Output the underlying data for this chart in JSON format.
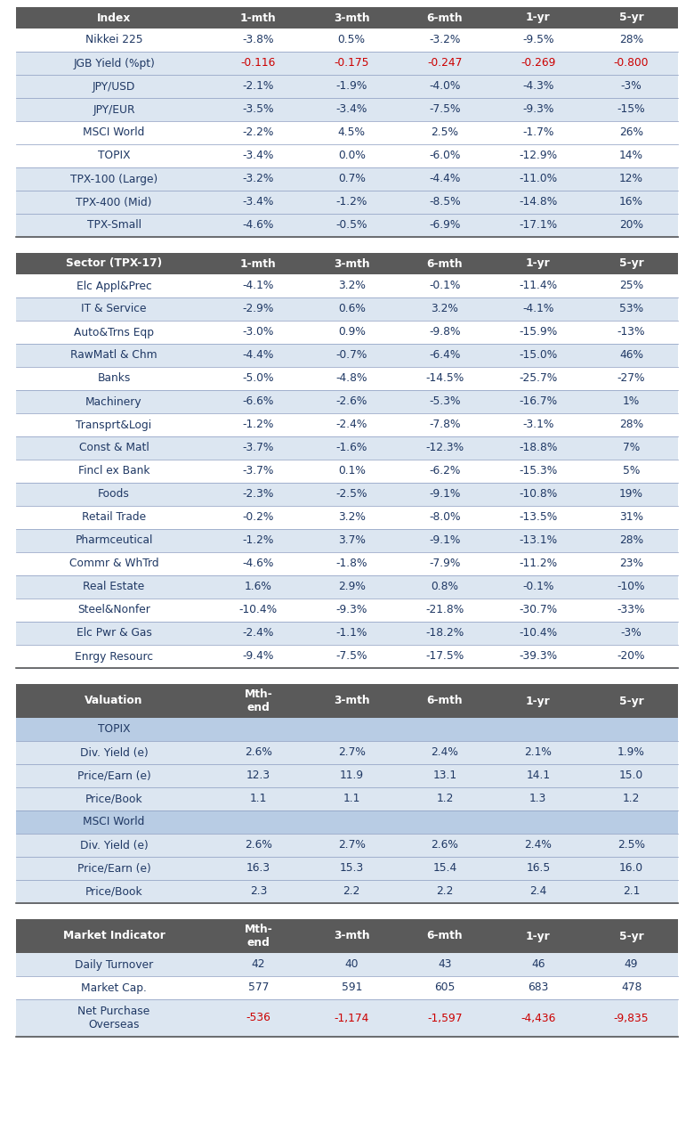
{
  "table1_header": [
    "Index",
    "1-mth",
    "3-mth",
    "6-mth",
    "1-yr",
    "5-yr"
  ],
  "table1_rows": [
    [
      "Nikkei 225",
      "-3.8%",
      "0.5%",
      "-3.2%",
      "-9.5%",
      "28%"
    ],
    [
      "JGB Yield (%pt)",
      "-0.116",
      "-0.175",
      "-0.247",
      "-0.269",
      "-0.800"
    ],
    [
      "JPY/USD",
      "-2.1%",
      "-1.9%",
      "-4.0%",
      "-4.3%",
      "-3%"
    ],
    [
      "JPY/EUR",
      "-3.5%",
      "-3.4%",
      "-7.5%",
      "-9.3%",
      "-15%"
    ],
    [
      "MSCI World",
      "-2.2%",
      "4.5%",
      "2.5%",
      "-1.7%",
      "26%"
    ],
    [
      "TOPIX",
      "-3.4%",
      "0.0%",
      "-6.0%",
      "-12.9%",
      "14%"
    ],
    [
      "TPX-100 (Large)",
      "-3.2%",
      "0.7%",
      "-4.4%",
      "-11.0%",
      "12%"
    ],
    [
      "TPX-400 (Mid)",
      "-3.4%",
      "-1.2%",
      "-8.5%",
      "-14.8%",
      "16%"
    ],
    [
      "TPX-Small",
      "-4.6%",
      "-0.5%",
      "-6.9%",
      "-17.1%",
      "20%"
    ]
  ],
  "table1_red_rows": [
    1
  ],
  "table1_blue_rows": [
    1,
    2,
    3,
    6,
    7,
    8
  ],
  "table2_header": [
    "Sector (TPX-17)",
    "1-mth",
    "3-mth",
    "6-mth",
    "1-yr",
    "5-yr"
  ],
  "table2_rows": [
    [
      "Elc Appl&Prec",
      "-4.1%",
      "3.2%",
      "-0.1%",
      "-11.4%",
      "25%"
    ],
    [
      "IT & Service",
      "-2.9%",
      "0.6%",
      "3.2%",
      "-4.1%",
      "53%"
    ],
    [
      "Auto&Trns Eqp",
      "-3.0%",
      "0.9%",
      "-9.8%",
      "-15.9%",
      "-13%"
    ],
    [
      "RawMatl & Chm",
      "-4.4%",
      "-0.7%",
      "-6.4%",
      "-15.0%",
      "46%"
    ],
    [
      "Banks",
      "-5.0%",
      "-4.8%",
      "-14.5%",
      "-25.7%",
      "-27%"
    ],
    [
      "Machinery",
      "-6.6%",
      "-2.6%",
      "-5.3%",
      "-16.7%",
      "1%"
    ],
    [
      "Transprt&Logi",
      "-1.2%",
      "-2.4%",
      "-7.8%",
      "-3.1%",
      "28%"
    ],
    [
      "Const & Matl",
      "-3.7%",
      "-1.6%",
      "-12.3%",
      "-18.8%",
      "7%"
    ],
    [
      "Fincl ex Bank",
      "-3.7%",
      "0.1%",
      "-6.2%",
      "-15.3%",
      "5%"
    ],
    [
      "Foods",
      "-2.3%",
      "-2.5%",
      "-9.1%",
      "-10.8%",
      "19%"
    ],
    [
      "Retail Trade",
      "-0.2%",
      "3.2%",
      "-8.0%",
      "-13.5%",
      "31%"
    ],
    [
      "Pharmceutical",
      "-1.2%",
      "3.7%",
      "-9.1%",
      "-13.1%",
      "28%"
    ],
    [
      "Commr & WhTrd",
      "-4.6%",
      "-1.8%",
      "-7.9%",
      "-11.2%",
      "23%"
    ],
    [
      "Real Estate",
      "1.6%",
      "2.9%",
      "0.8%",
      "-0.1%",
      "-10%"
    ],
    [
      "Steel&Nonfer",
      "-10.4%",
      "-9.3%",
      "-21.8%",
      "-30.7%",
      "-33%"
    ],
    [
      "Elc Pwr & Gas",
      "-2.4%",
      "-1.1%",
      "-18.2%",
      "-10.4%",
      "-3%"
    ],
    [
      "Enrgy Resourc",
      "-9.4%",
      "-7.5%",
      "-17.5%",
      "-39.3%",
      "-20%"
    ]
  ],
  "table2_blue_rows": [
    1,
    3,
    5,
    7,
    9,
    11,
    13,
    15
  ],
  "table3_header": [
    "Valuation",
    "Mth-\nend",
    "3-mth",
    "6-mth",
    "1-yr",
    "5-yr"
  ],
  "table3_sections": [
    {
      "section_label": "TOPIX",
      "rows": [
        [
          "Div. Yield (e)",
          "2.6%",
          "2.7%",
          "2.4%",
          "2.1%",
          "1.9%"
        ],
        [
          "Price/Earn (e)",
          "12.3",
          "11.9",
          "13.1",
          "14.1",
          "15.0"
        ],
        [
          "Price/Book",
          "1.1",
          "1.1",
          "1.2",
          "1.3",
          "1.2"
        ]
      ]
    },
    {
      "section_label": "MSCI World",
      "rows": [
        [
          "Div. Yield (e)",
          "2.6%",
          "2.7%",
          "2.6%",
          "2.4%",
          "2.5%"
        ],
        [
          "Price/Earn (e)",
          "16.3",
          "15.3",
          "15.4",
          "16.5",
          "16.0"
        ],
        [
          "Price/Book",
          "2.3",
          "2.2",
          "2.2",
          "2.4",
          "2.1"
        ]
      ]
    }
  ],
  "table4_header": [
    "Market Indicator",
    "Mth-\nend",
    "3-mth",
    "6-mth",
    "1-yr",
    "5-yr"
  ],
  "table4_rows": [
    [
      "Daily Turnover",
      "42",
      "40",
      "43",
      "46",
      "49"
    ],
    [
      "Market Cap.",
      "577",
      "591",
      "605",
      "683",
      "478"
    ],
    [
      "Net Purchase\nOverseas",
      "-536",
      "-1,174",
      "-1,597",
      "-4,436",
      "-9,835"
    ]
  ],
  "table4_red_rows": [
    2
  ],
  "table4_blue_rows": [
    0,
    2
  ],
  "header_bg": "#5a5a5a",
  "header_fg": "#ffffff",
  "row_bg_white": "#ffffff",
  "row_bg_blue": "#dce6f1",
  "section_bg": "#b8cce4",
  "text_color_dark": "#1f3864",
  "text_color_red": "#cc0000"
}
